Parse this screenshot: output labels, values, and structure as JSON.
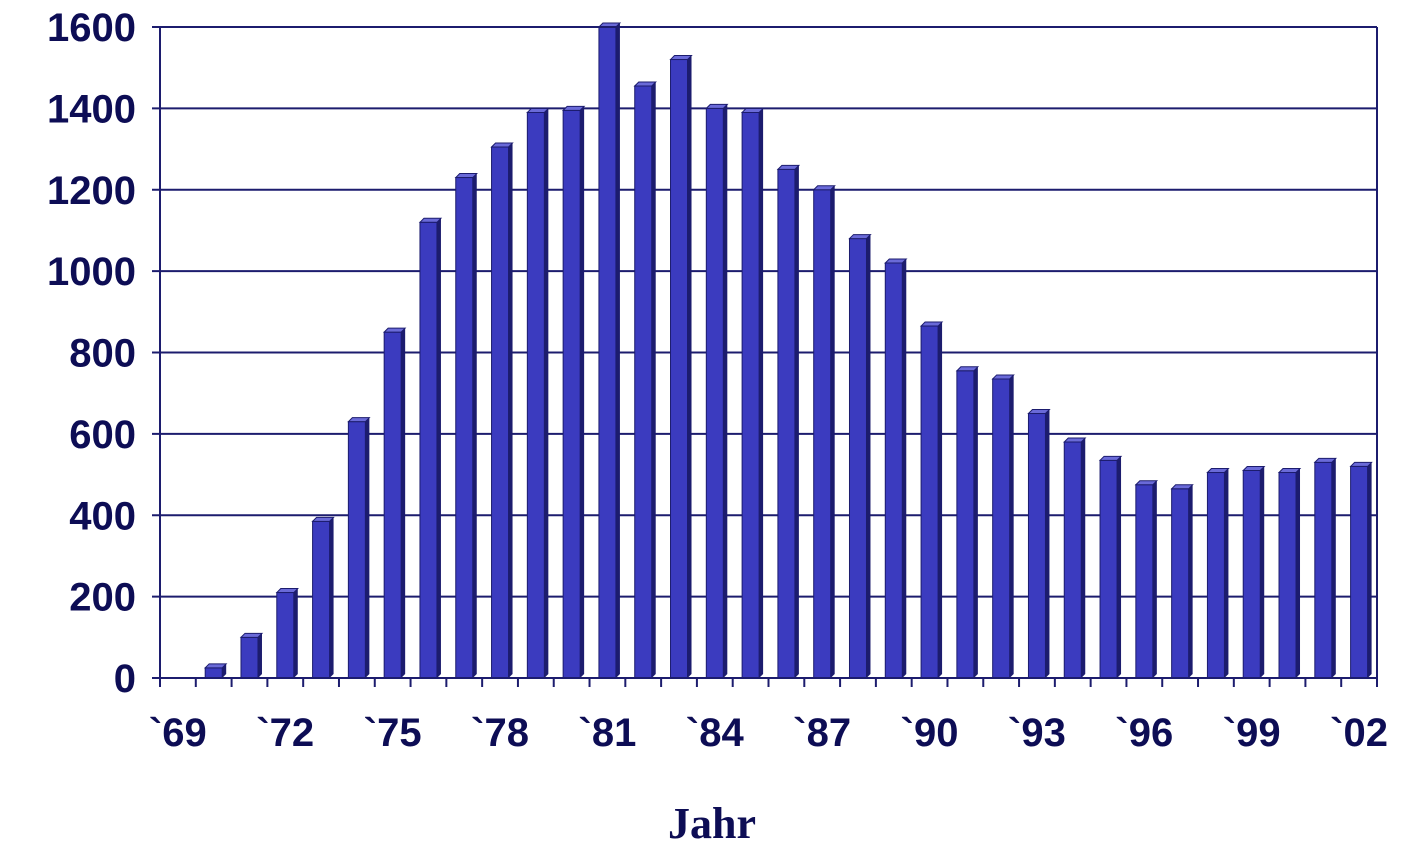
{
  "chart_data": {
    "type": "bar",
    "title": "",
    "xlabel": "Jahr",
    "ylabel": "",
    "ylim": [
      0,
      1600
    ],
    "yticks": [
      0,
      200,
      400,
      600,
      800,
      1000,
      1200,
      1400,
      1600
    ],
    "grid": "horizontal",
    "categories": [
      "1969",
      "1970",
      "1971",
      "1972",
      "1973",
      "1974",
      "1975",
      "1976",
      "1977",
      "1978",
      "1979",
      "1980",
      "1981",
      "1982",
      "1983",
      "1984",
      "1985",
      "1986",
      "1987",
      "1988",
      "1989",
      "1990",
      "1991",
      "1992",
      "1993",
      "1994",
      "1995",
      "1996",
      "1997",
      "1998",
      "1999",
      "2000",
      "2001",
      "2002"
    ],
    "xtick_labels": [
      "`69",
      "`72",
      "`75",
      "`78",
      "`81",
      "`84",
      "`87",
      "`90",
      "`93",
      "`96",
      "`99",
      "`02"
    ],
    "values": [
      0,
      25,
      100,
      210,
      385,
      630,
      850,
      1120,
      1230,
      1305,
      1390,
      1395,
      1600,
      1455,
      1520,
      1400,
      1390,
      1250,
      1200,
      1080,
      1020,
      865,
      755,
      735,
      650,
      580,
      535,
      475,
      465,
      505,
      510,
      505,
      530,
      520
    ],
    "colors": {
      "bar_front": "#3b3bbf",
      "bar_side": "#1c1c6e",
      "bar_top": "#6a6ad8",
      "gridline": "#1c1c6e",
      "text": "#0d0d55"
    }
  }
}
